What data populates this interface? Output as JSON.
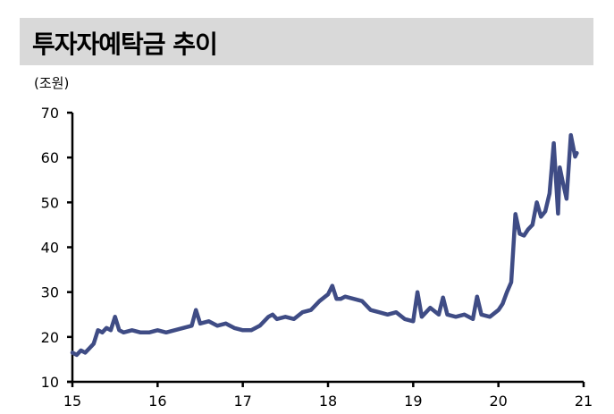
{
  "header": {
    "title": "투자자예탁금 추이",
    "background_color": "#d9d9d9"
  },
  "unit_label": "(조원)",
  "chart_data": {
    "type": "line",
    "title": "투자자예탁금 추이",
    "ylabel": "(조원)",
    "xlabel": "",
    "xlim": [
      15,
      21
    ],
    "ylim": [
      10,
      70
    ],
    "x_ticks": [
      "15",
      "16",
      "17",
      "18",
      "19",
      "20",
      "21"
    ],
    "y_ticks": [
      "10",
      "20",
      "30",
      "40",
      "50",
      "60",
      "70"
    ],
    "grid": false,
    "legend": null,
    "series": [
      {
        "name": "투자자예탁금",
        "color": "#3f4c85",
        "x": [
          15.0,
          15.05,
          15.1,
          15.15,
          15.2,
          15.25,
          15.3,
          15.35,
          15.4,
          15.45,
          15.5,
          15.55,
          15.6,
          15.7,
          15.8,
          15.9,
          16.0,
          16.1,
          16.2,
          16.3,
          16.4,
          16.45,
          16.5,
          16.6,
          16.7,
          16.8,
          16.9,
          17.0,
          17.1,
          17.2,
          17.3,
          17.35,
          17.4,
          17.5,
          17.6,
          17.7,
          17.8,
          17.9,
          18.0,
          18.05,
          18.1,
          18.15,
          18.2,
          18.3,
          18.4,
          18.5,
          18.6,
          18.7,
          18.8,
          18.9,
          19.0,
          19.05,
          19.1,
          19.2,
          19.3,
          19.35,
          19.4,
          19.5,
          19.6,
          19.7,
          19.75,
          19.8,
          19.9,
          20.0,
          20.05,
          20.1,
          20.15,
          20.2,
          20.25,
          20.3,
          20.35,
          20.4,
          20.45,
          20.5,
          20.55,
          20.6,
          20.65,
          20.7,
          20.72,
          20.75,
          20.8,
          20.85,
          20.9,
          20.92
        ],
        "values": [
          16.5,
          16.0,
          17.0,
          16.5,
          17.5,
          18.5,
          21.5,
          21.0,
          22.0,
          21.5,
          24.5,
          21.5,
          21.0,
          21.5,
          21.0,
          21.0,
          21.5,
          21.0,
          21.5,
          22.0,
          22.5,
          26.0,
          23.0,
          23.5,
          22.5,
          23.0,
          22.0,
          21.5,
          21.5,
          22.5,
          24.5,
          25.0,
          24.0,
          24.5,
          24.0,
          25.5,
          26.0,
          28.0,
          29.5,
          31.4,
          28.5,
          28.5,
          29.0,
          28.5,
          28.0,
          26.0,
          25.5,
          25.0,
          25.5,
          24.0,
          23.5,
          30.0,
          24.5,
          26.5,
          25.0,
          28.8,
          25.0,
          24.5,
          25.0,
          24.0,
          29.0,
          25.0,
          24.5,
          26.0,
          27.4,
          30.0,
          32.2,
          47.4,
          43.0,
          42.6,
          44.0,
          45.0,
          50.0,
          46.8,
          48.0,
          52.0,
          63.2,
          47.5,
          57.8,
          55.0,
          50.8,
          65.0,
          60.2,
          61.0
        ]
      }
    ]
  }
}
